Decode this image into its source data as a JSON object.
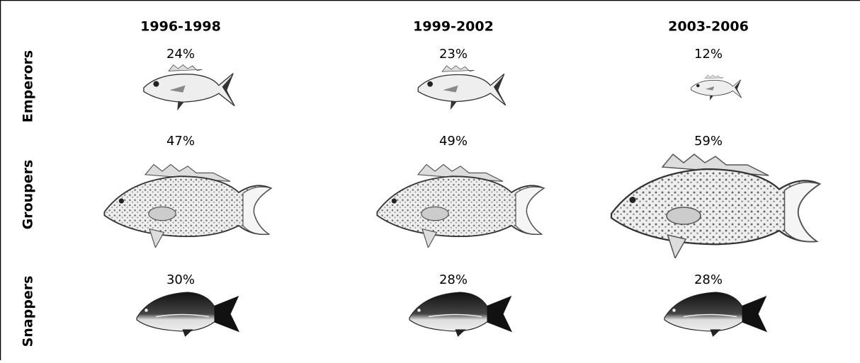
{
  "columns": [
    "1996-1998",
    "1999-2002",
    "2003-2006"
  ],
  "rows": [
    {
      "label": "Emperors",
      "cells": [
        "24%",
        "23%",
        "12%"
      ]
    },
    {
      "label": "Groupers",
      "cells": [
        "47%",
        "49%",
        "59%"
      ]
    },
    {
      "label": "Snappers",
      "cells": [
        "30%",
        "28%",
        "28%"
      ]
    }
  ]
}
